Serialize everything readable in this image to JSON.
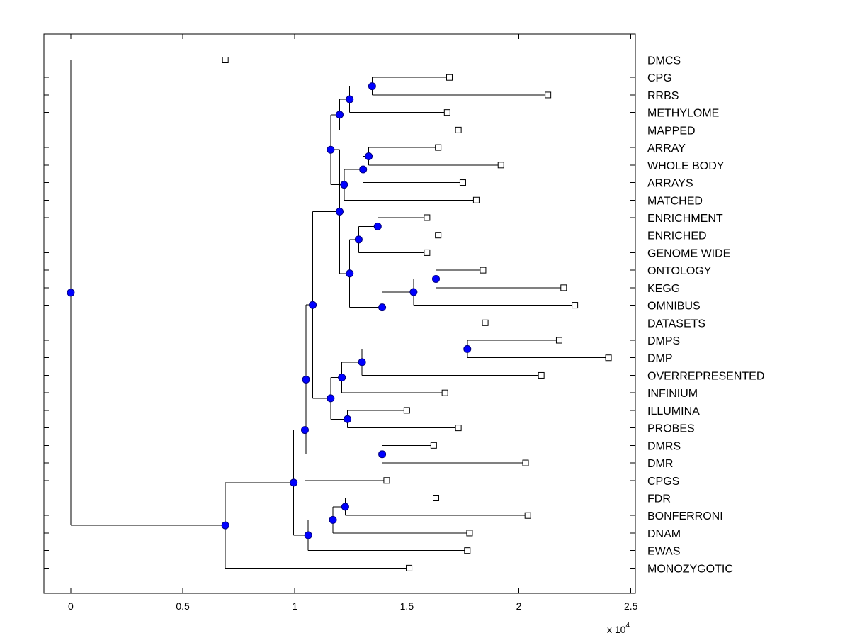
{
  "chart_data": {
    "type": "dendrogram",
    "title": "",
    "xlabel": "",
    "ylabel": "",
    "xlim": [
      -0.12,
      2.52
    ],
    "x_ticks": [
      {
        "value": 0,
        "label": "0"
      },
      {
        "value": 0.5,
        "label": "0.5"
      },
      {
        "value": 1,
        "label": "1"
      },
      {
        "value": 1.5,
        "label": "1.5"
      },
      {
        "value": 2,
        "label": "2"
      },
      {
        "value": 2.5,
        "label": "2.5"
      }
    ],
    "x_scale_label": {
      "base": "x 10",
      "exponent": "4"
    },
    "colors": {
      "axis": "#000000",
      "node_fill": "#0000ff",
      "node_stroke": "#000080",
      "leaf_fill": "#ffffff",
      "edge": "#000000"
    },
    "leaves": [
      {
        "label": "DMCS",
        "x": 0.69
      },
      {
        "label": "CPG",
        "x": 1.69
      },
      {
        "label": "RRBS",
        "x": 2.13
      },
      {
        "label": "METHYLOME",
        "x": 1.68
      },
      {
        "label": "MAPPED",
        "x": 1.73
      },
      {
        "label": "ARRAY",
        "x": 1.64
      },
      {
        "label": "WHOLE BODY",
        "x": 1.92
      },
      {
        "label": "ARRAYS",
        "x": 1.75
      },
      {
        "label": "MATCHED",
        "x": 1.81
      },
      {
        "label": "ENRICHMENT",
        "x": 1.59
      },
      {
        "label": "ENRICHED",
        "x": 1.64
      },
      {
        "label": "GENOME WIDE",
        "x": 1.59
      },
      {
        "label": "ONTOLOGY",
        "x": 1.84
      },
      {
        "label": "KEGG",
        "x": 2.2
      },
      {
        "label": "OMNIBUS",
        "x": 2.25
      },
      {
        "label": "DATASETS",
        "x": 1.85
      },
      {
        "label": "DMPS",
        "x": 2.18
      },
      {
        "label": "DMP",
        "x": 2.4
      },
      {
        "label": "OVERREPRESENTED",
        "x": 2.1
      },
      {
        "label": "INFINIUM",
        "x": 1.67
      },
      {
        "label": "ILLUMINA",
        "x": 1.5
      },
      {
        "label": "PROBES",
        "x": 1.73
      },
      {
        "label": "DMRS",
        "x": 1.62
      },
      {
        "label": "DMR",
        "x": 2.03
      },
      {
        "label": "CPGS",
        "x": 1.41
      },
      {
        "label": "FDR",
        "x": 1.63
      },
      {
        "label": "BONFERRONI",
        "x": 2.04
      },
      {
        "label": "DNAM",
        "x": 1.78
      },
      {
        "label": "EWAS",
        "x": 1.77
      },
      {
        "label": "MONOZYGOTIC",
        "x": 1.51
      }
    ],
    "nodes": [
      {
        "id": "n_cpg_rrbs",
        "x": 1.345,
        "children": [
          "L1",
          "L2"
        ]
      },
      {
        "id": "n_meth",
        "x": 1.245,
        "children": [
          "n_cpg_rrbs",
          "L3"
        ]
      },
      {
        "id": "n_mapped",
        "x": 1.2,
        "children": [
          "n_meth",
          "L4"
        ]
      },
      {
        "id": "n_array_wb",
        "x": 1.33,
        "children": [
          "L5",
          "L6"
        ]
      },
      {
        "id": "n_arrays",
        "x": 1.305,
        "children": [
          "n_array_wb",
          "L7"
        ]
      },
      {
        "id": "n_matched",
        "x": 1.22,
        "children": [
          "n_arrays",
          "L8"
        ]
      },
      {
        "id": "n_top",
        "x": 1.16,
        "children": [
          "n_mapped",
          "n_matched"
        ]
      },
      {
        "id": "n_enr",
        "x": 1.37,
        "children": [
          "L9",
          "L10"
        ]
      },
      {
        "id": "n_gw",
        "x": 1.285,
        "children": [
          "n_enr",
          "L11"
        ]
      },
      {
        "id": "n_onto_kegg",
        "x": 1.63,
        "children": [
          "L12",
          "L13"
        ]
      },
      {
        "id": "n_omni",
        "x": 1.53,
        "children": [
          "n_onto_kegg",
          "L14"
        ]
      },
      {
        "id": "n_datasets",
        "x": 1.39,
        "children": [
          "n_omni",
          "L15"
        ]
      },
      {
        "id": "n_mid",
        "x": 1.245,
        "children": [
          "n_gw",
          "n_datasets"
        ]
      },
      {
        "id": "n_upper",
        "x": 1.2,
        "children": [
          "n_top",
          "n_mid"
        ]
      },
      {
        "id": "n_dmps",
        "x": 1.77,
        "children": [
          "L16",
          "L17"
        ]
      },
      {
        "id": "n_over",
        "x": 1.3,
        "children": [
          "n_dmps",
          "L18"
        ]
      },
      {
        "id": "n_inf",
        "x": 1.21,
        "children": [
          "n_over",
          "L19"
        ]
      },
      {
        "id": "n_ill",
        "x": 1.235,
        "children": [
          "L20",
          "L21"
        ]
      },
      {
        "id": "n_lower1",
        "x": 1.16,
        "children": [
          "n_inf",
          "n_ill"
        ]
      },
      {
        "id": "n_big",
        "x": 1.08,
        "children": [
          "n_upper",
          "n_lower1"
        ]
      },
      {
        "id": "n_dmrs",
        "x": 1.39,
        "children": [
          "L22",
          "L23"
        ]
      },
      {
        "id": "n_dmr_clu",
        "x": 1.05,
        "children": [
          "n_big",
          "n_dmrs"
        ]
      },
      {
        "id": "n_cpgs",
        "x": 1.045,
        "children": [
          "n_dmr_clu",
          "L24"
        ]
      },
      {
        "id": "n_fdr",
        "x": 1.225,
        "children": [
          "L25",
          "L26"
        ]
      },
      {
        "id": "n_dnam",
        "x": 1.17,
        "children": [
          "n_fdr",
          "L27"
        ]
      },
      {
        "id": "n_ewas",
        "x": 1.06,
        "children": [
          "n_dnam",
          "L28"
        ]
      },
      {
        "id": "n_one",
        "x": 0.995,
        "children": [
          "n_cpgs",
          "n_ewas"
        ]
      },
      {
        "id": "n_mono",
        "x": 0.69,
        "children": [
          "n_one",
          "L29"
        ]
      },
      {
        "id": "n_root",
        "x": 0,
        "children": [
          "L0",
          "n_mono"
        ]
      }
    ]
  }
}
